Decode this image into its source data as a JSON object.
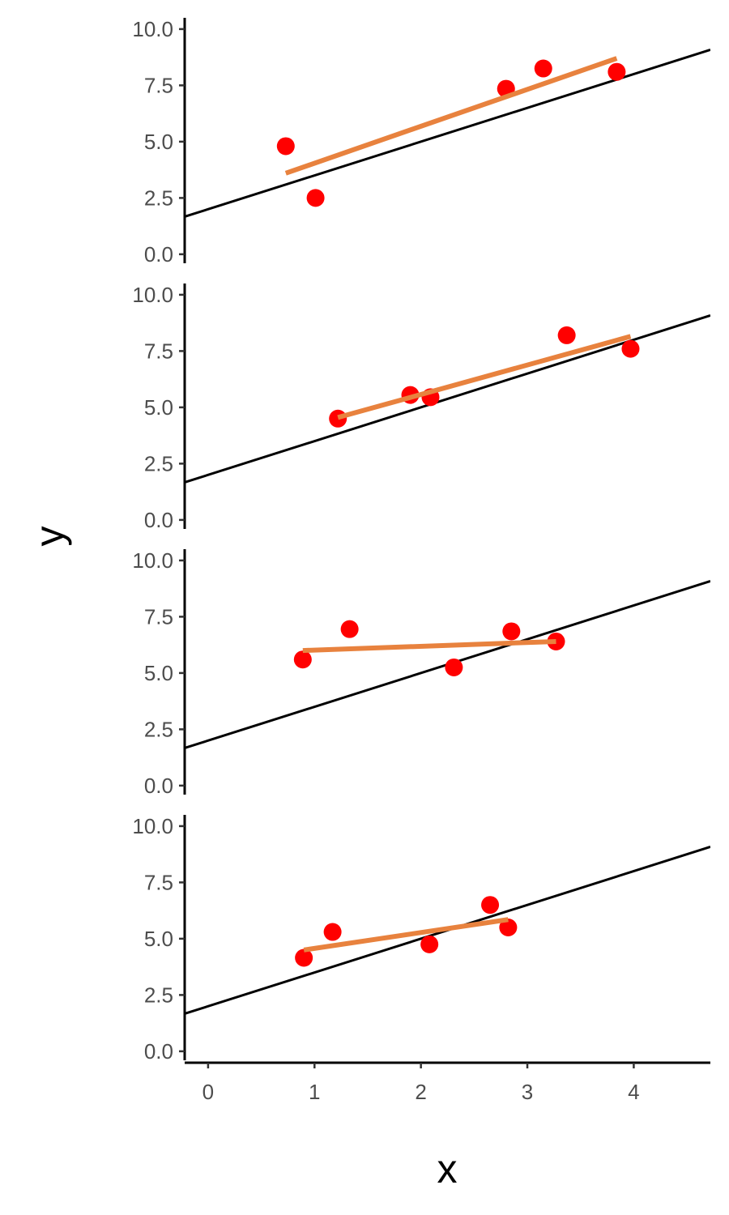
{
  "chart_data": {
    "type": "scatter",
    "xlabel": "x",
    "ylabel": "y",
    "xlim": [
      -0.22,
      4.72
    ],
    "ylim": [
      -0.4,
      10.5
    ],
    "x_ticks": [
      0,
      1,
      2,
      3,
      4
    ],
    "x_tick_labels": [
      "0",
      "1",
      "2",
      "3",
      "4"
    ],
    "y_ticks": [
      0,
      2.5,
      5,
      7.5,
      10
    ],
    "y_tick_labels": [
      "0.0",
      "2.5",
      "5.0",
      "7.5",
      "10.0"
    ],
    "grid": false,
    "reference_line": {
      "intercept": 2.0,
      "slope": 1.5
    },
    "colors": {
      "points": "#ff0000",
      "fit_line": "#e8823e",
      "reference_line": "#000000",
      "axis": "#000000"
    },
    "panels": [
      {
        "points": [
          {
            "x": 0.73,
            "y": 4.8
          },
          {
            "x": 1.01,
            "y": 2.5
          },
          {
            "x": 2.8,
            "y": 7.35
          },
          {
            "x": 3.15,
            "y": 8.25
          },
          {
            "x": 3.84,
            "y": 8.1
          }
        ],
        "fit_line": {
          "x": [
            0.73,
            3.84
          ],
          "y": [
            3.6,
            8.7
          ]
        }
      },
      {
        "points": [
          {
            "x": 1.22,
            "y": 4.5
          },
          {
            "x": 1.9,
            "y": 5.55
          },
          {
            "x": 2.09,
            "y": 5.45
          },
          {
            "x": 3.37,
            "y": 8.2
          },
          {
            "x": 3.97,
            "y": 7.6
          }
        ],
        "fit_line": {
          "x": [
            1.22,
            3.97
          ],
          "y": [
            4.55,
            8.15
          ]
        }
      },
      {
        "points": [
          {
            "x": 0.89,
            "y": 5.6
          },
          {
            "x": 1.33,
            "y": 6.95
          },
          {
            "x": 2.31,
            "y": 5.25
          },
          {
            "x": 2.85,
            "y": 6.85
          },
          {
            "x": 3.27,
            "y": 6.4
          }
        ],
        "fit_line": {
          "x": [
            0.89,
            3.27
          ],
          "y": [
            6.0,
            6.4
          ]
        }
      },
      {
        "points": [
          {
            "x": 0.9,
            "y": 4.15
          },
          {
            "x": 1.17,
            "y": 5.3
          },
          {
            "x": 2.08,
            "y": 4.75
          },
          {
            "x": 2.65,
            "y": 6.5
          },
          {
            "x": 2.82,
            "y": 5.5
          }
        ],
        "fit_line": {
          "x": [
            0.9,
            2.82
          ],
          "y": [
            4.5,
            5.85
          ]
        }
      }
    ]
  }
}
